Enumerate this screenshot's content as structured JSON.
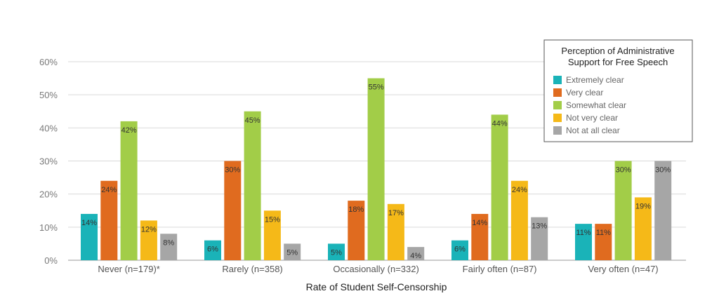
{
  "chart_data": {
    "type": "bar",
    "title": "",
    "xlabel": "Rate of Student Self-Censorship",
    "ylabel": "",
    "ylim": [
      0,
      60
    ],
    "yticks": [
      "0%",
      "10%",
      "20%",
      "30%",
      "40%",
      "50%",
      "60%"
    ],
    "grid": true,
    "categories": [
      "Never (n=179)*",
      "Rarely (n=358)",
      "Occasionally (n=332)",
      "Fairly often (n=87)",
      "Very often (n=47)"
    ],
    "legend": {
      "title_line1": "Perception of Administrative",
      "title_line2": "Support for Free Speech",
      "position": "top-right"
    },
    "series": [
      {
        "name": "Extremely clear",
        "color": "#1ab3b8",
        "values": [
          14,
          6,
          5,
          6,
          11
        ],
        "labels": [
          "14%",
          "6%",
          "5%",
          "6%",
          "11%"
        ]
      },
      {
        "name": "Very clear",
        "color": "#e06b1f",
        "values": [
          24,
          30,
          18,
          14,
          11
        ],
        "labels": [
          "24%",
          "30%",
          "18%",
          "14%",
          "11%"
        ]
      },
      {
        "name": "Somewhat clear",
        "color": "#a2cd48",
        "values": [
          42,
          45,
          55,
          44,
          30
        ],
        "labels": [
          "42%",
          "45%",
          "55%",
          "44%",
          "30%"
        ]
      },
      {
        "name": "Not very clear",
        "color": "#f5b918",
        "values": [
          12,
          15,
          17,
          24,
          19
        ],
        "labels": [
          "12%",
          "15%",
          "17%",
          "24%",
          "19%"
        ]
      },
      {
        "name": "Not at all clear",
        "color": "#a6a6a6",
        "values": [
          8,
          5,
          4,
          13,
          30
        ],
        "labels": [
          "8%",
          "5%",
          "4%",
          "13%",
          "30%"
        ]
      }
    ]
  }
}
